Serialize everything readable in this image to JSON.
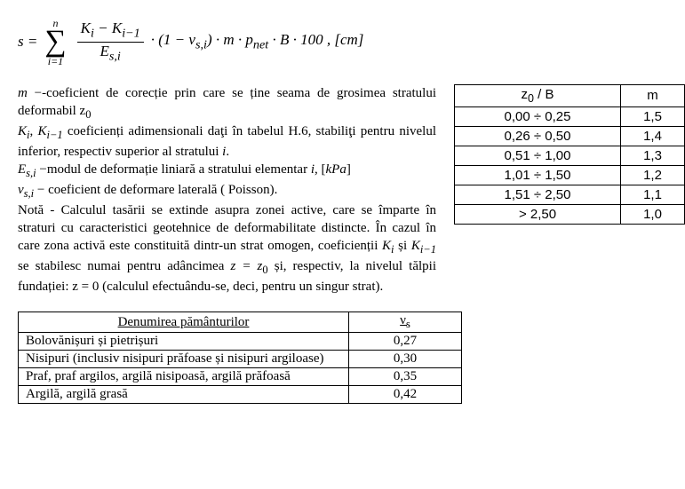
{
  "formula": {
    "lhs": "s =",
    "sum_top": "n",
    "sum_bot": "i=1",
    "frac_num": "K<sub>i</sub> − K<sub>i−1</sub>",
    "frac_den": "E<sub>s,i</sub>",
    "rest": "· (1 − ν<sub>s,i</sub>) · m · p<sub>net</sub> · B · 100 , [cm]"
  },
  "para": {
    "l1": "<span class='ital'>m</span> −-coeficient de corecție prin care se ține seama de grosimea stratului deformabil  z<sub>0</sub>",
    "l2": "<span class='ital'>K<sub>i</sub></span>, <span class='ital'>K<sub>i−1</sub></span> coeficienți adimensionali daţi în tabelul H.6, stabiliţi pentru nivelul inferior, respectiv superior al stratului <span class='ital'>i</span>.",
    "l3": "<span class='ital'>E<sub>s,i</sub></span> −modul de deformație liniară a stratului elementar <span class='ital'>i</span>, [<span class='ital'>kPa</span>]",
    "l4": "<span class='ital'>ν<sub>s,i</sub></span> − coeficient de deformare laterală ( Poisson).",
    "l5": "Notă - Calculul tasării se extinde asupra zonei active, care se împarte în straturi cu caracteristici geotehnice de deformabilitate distincte. În cazul în care zona activă este constituită dintr-un strat omogen, coeficienții <span class='ital'>K<sub>i</sub></span> și <span class='ital'>K<sub>i−1</sub></span> se stabilesc numai pentru adâncimea <span class='ital'>z = z</span><sub>0</sub>  și, respectiv, la nivelul tălpii fundației: z = 0 (calculul efectuându-se, deci, pentru un singur strat)."
  },
  "table1": {
    "headers": [
      "z<sub>0</sub> / B",
      "m"
    ],
    "rows": [
      [
        "0,00 ÷ 0,25",
        "1,5"
      ],
      [
        "0,26 ÷ 0,50",
        "1,4"
      ],
      [
        "0,51 ÷ 1,00",
        "1,3"
      ],
      [
        "1,01 ÷ 1,50",
        "1,2"
      ],
      [
        "1,51 ÷ 2,50",
        "1,1"
      ],
      [
        "> 2,50",
        "1,0"
      ]
    ]
  },
  "table2": {
    "headers": [
      "Denumirea pământurilor",
      "ν<sub>s</sub>"
    ],
    "rows": [
      [
        "Bolovănișuri și pietrișuri",
        "0,27"
      ],
      [
        "Nisipuri (inclusiv nisipuri prăfoase și nisipuri argiloase)",
        "0,30"
      ],
      [
        "Praf, praf argilos, argilă nisipoasă, argilă prăfoasă",
        "0,35"
      ],
      [
        "Argilă, argilă grasă",
        "0,42"
      ]
    ]
  }
}
